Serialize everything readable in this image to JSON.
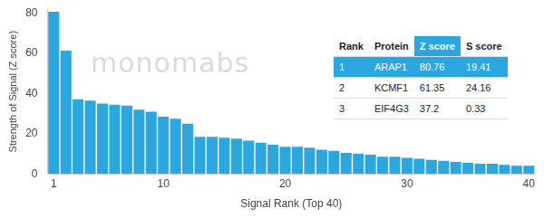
{
  "chart_data": {
    "type": "bar",
    "y_label": "Strength of Signal (Z score)",
    "x_label": "Signal Rank (Top 40)",
    "annotations": [
      "monomabs"
    ],
    "categories": [
      "1",
      null,
      null,
      null,
      null,
      null,
      null,
      null,
      null,
      "10",
      null,
      null,
      null,
      null,
      null,
      null,
      null,
      null,
      null,
      "20",
      null,
      null,
      null,
      null,
      null,
      null,
      null,
      null,
      null,
      "30",
      null,
      null,
      null,
      null,
      null,
      null,
      null,
      null,
      null,
      "40"
    ],
    "values": [
      80.76,
      61.35,
      37.2,
      36.5,
      35,
      34.5,
      34,
      32,
      31,
      28.5,
      27.5,
      25,
      18.5,
      18.5,
      18,
      17.5,
      16.5,
      15.5,
      14.5,
      13.5,
      13.5,
      13,
      12,
      11.5,
      10.5,
      10,
      9.5,
      8.5,
      8.5,
      8,
      7.5,
      7,
      6.5,
      6,
      5.5,
      5,
      5,
      4.5,
      4,
      4
    ],
    "color": "#2ba6de",
    "ylim": [
      0,
      82
    ],
    "yticks": [
      0,
      20,
      40,
      60,
      80
    ],
    "grid": false
  },
  "table": {
    "columns": [
      "Rank",
      "Protein",
      "Z score",
      "S score"
    ],
    "highlight_column": "Z score",
    "rows": [
      [
        1,
        "ARAP1",
        80.76,
        19.41
      ],
      [
        2,
        "KCMF1",
        61.35,
        24.16
      ],
      [
        3,
        "EIF4G3",
        37.2,
        0.33
      ]
    ]
  }
}
